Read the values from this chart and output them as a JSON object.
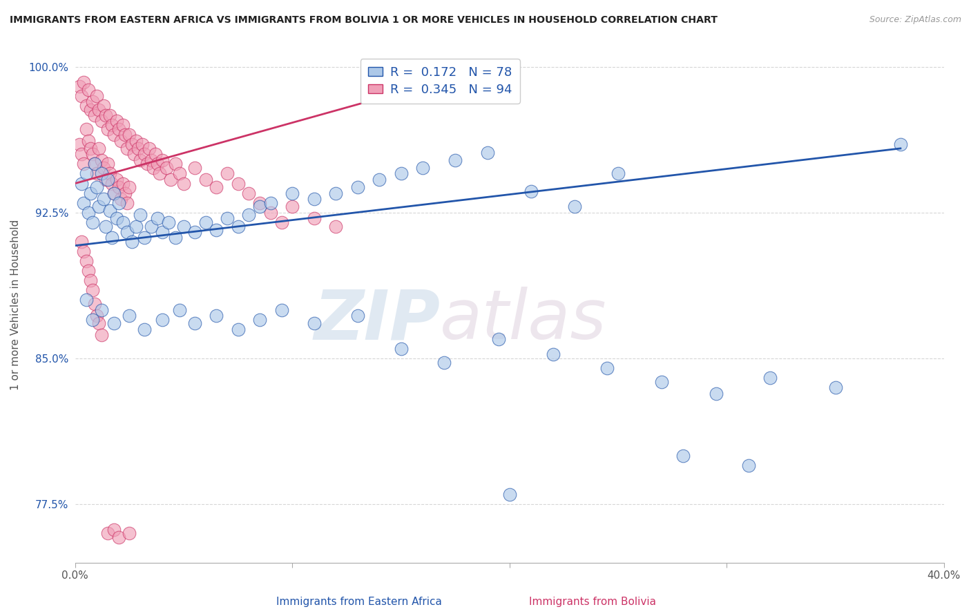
{
  "title": "IMMIGRANTS FROM EASTERN AFRICA VS IMMIGRANTS FROM BOLIVIA 1 OR MORE VEHICLES IN HOUSEHOLD CORRELATION CHART",
  "source": "Source: ZipAtlas.com",
  "xlabel_blue": "Immigrants from Eastern Africa",
  "xlabel_pink": "Immigrants from Bolivia",
  "ylabel": "1 or more Vehicles in Household",
  "xlim": [
    0.0,
    0.4
  ],
  "ylim": [
    0.745,
    1.01
  ],
  "yticks": [
    0.775,
    0.85,
    0.925,
    1.0
  ],
  "ytick_labels": [
    "77.5%",
    "85.0%",
    "92.5%",
    "100.0%"
  ],
  "xticks": [
    0.0,
    0.1,
    0.2,
    0.3,
    0.4
  ],
  "xtick_labels": [
    "0.0%",
    "",
    "",
    "",
    "40.0%"
  ],
  "R_blue": 0.172,
  "N_blue": 78,
  "R_pink": 0.345,
  "N_pink": 94,
  "color_blue": "#adc8e8",
  "color_pink": "#f0a0b8",
  "line_color_blue": "#2255aa",
  "line_color_pink": "#cc3366",
  "watermark_zip": "#b0c8e8",
  "watermark_atlas": "#d0c0d8",
  "background": "#ffffff",
  "blue_trend_x": [
    0.0,
    0.38
  ],
  "blue_trend_y": [
    0.908,
    0.958
  ],
  "pink_trend_x": [
    0.0,
    0.16
  ],
  "pink_trend_y": [
    0.94,
    0.99
  ],
  "scatter_blue_x": [
    0.003,
    0.004,
    0.005,
    0.006,
    0.007,
    0.008,
    0.009,
    0.01,
    0.011,
    0.012,
    0.013,
    0.014,
    0.015,
    0.016,
    0.017,
    0.018,
    0.019,
    0.02,
    0.022,
    0.024,
    0.026,
    0.028,
    0.03,
    0.032,
    0.035,
    0.038,
    0.04,
    0.043,
    0.046,
    0.05,
    0.055,
    0.06,
    0.065,
    0.07,
    0.075,
    0.08,
    0.085,
    0.09,
    0.1,
    0.11,
    0.12,
    0.13,
    0.14,
    0.15,
    0.16,
    0.175,
    0.19,
    0.21,
    0.23,
    0.25,
    0.005,
    0.008,
    0.012,
    0.018,
    0.025,
    0.032,
    0.04,
    0.048,
    0.055,
    0.065,
    0.075,
    0.085,
    0.095,
    0.11,
    0.13,
    0.15,
    0.17,
    0.195,
    0.22,
    0.245,
    0.27,
    0.295,
    0.32,
    0.35,
    0.28,
    0.31,
    0.38,
    0.2
  ],
  "scatter_blue_y": [
    0.94,
    0.93,
    0.945,
    0.925,
    0.935,
    0.92,
    0.95,
    0.938,
    0.928,
    0.945,
    0.932,
    0.918,
    0.942,
    0.926,
    0.912,
    0.935,
    0.922,
    0.93,
    0.92,
    0.915,
    0.91,
    0.918,
    0.924,
    0.912,
    0.918,
    0.922,
    0.915,
    0.92,
    0.912,
    0.918,
    0.915,
    0.92,
    0.916,
    0.922,
    0.918,
    0.924,
    0.928,
    0.93,
    0.935,
    0.932,
    0.935,
    0.938,
    0.942,
    0.945,
    0.948,
    0.952,
    0.956,
    0.936,
    0.928,
    0.945,
    0.88,
    0.87,
    0.875,
    0.868,
    0.872,
    0.865,
    0.87,
    0.875,
    0.868,
    0.872,
    0.865,
    0.87,
    0.875,
    0.868,
    0.872,
    0.855,
    0.848,
    0.86,
    0.852,
    0.845,
    0.838,
    0.832,
    0.84,
    0.835,
    0.8,
    0.795,
    0.96,
    0.78
  ],
  "scatter_pink_x": [
    0.002,
    0.003,
    0.004,
    0.005,
    0.006,
    0.007,
    0.008,
    0.009,
    0.01,
    0.011,
    0.012,
    0.013,
    0.014,
    0.015,
    0.016,
    0.017,
    0.018,
    0.019,
    0.02,
    0.021,
    0.022,
    0.023,
    0.024,
    0.025,
    0.026,
    0.027,
    0.028,
    0.029,
    0.03,
    0.031,
    0.032,
    0.033,
    0.034,
    0.035,
    0.036,
    0.037,
    0.038,
    0.039,
    0.04,
    0.042,
    0.044,
    0.046,
    0.048,
    0.05,
    0.055,
    0.06,
    0.065,
    0.07,
    0.075,
    0.08,
    0.002,
    0.003,
    0.004,
    0.005,
    0.006,
    0.007,
    0.008,
    0.009,
    0.01,
    0.011,
    0.012,
    0.013,
    0.014,
    0.015,
    0.016,
    0.017,
    0.018,
    0.019,
    0.02,
    0.021,
    0.022,
    0.023,
    0.024,
    0.025,
    0.085,
    0.09,
    0.095,
    0.1,
    0.11,
    0.12,
    0.003,
    0.004,
    0.005,
    0.006,
    0.007,
    0.008,
    0.009,
    0.01,
    0.011,
    0.012,
    0.015,
    0.018,
    0.02,
    0.025
  ],
  "scatter_pink_y": [
    0.99,
    0.985,
    0.992,
    0.98,
    0.988,
    0.978,
    0.982,
    0.975,
    0.985,
    0.978,
    0.972,
    0.98,
    0.975,
    0.968,
    0.975,
    0.97,
    0.965,
    0.972,
    0.968,
    0.962,
    0.97,
    0.965,
    0.958,
    0.965,
    0.96,
    0.955,
    0.962,
    0.958,
    0.952,
    0.96,
    0.955,
    0.95,
    0.958,
    0.952,
    0.948,
    0.955,
    0.95,
    0.945,
    0.952,
    0.948,
    0.942,
    0.95,
    0.945,
    0.94,
    0.948,
    0.942,
    0.938,
    0.945,
    0.94,
    0.935,
    0.96,
    0.955,
    0.95,
    0.968,
    0.962,
    0.958,
    0.955,
    0.95,
    0.945,
    0.958,
    0.952,
    0.948,
    0.942,
    0.95,
    0.945,
    0.94,
    0.935,
    0.942,
    0.938,
    0.932,
    0.94,
    0.935,
    0.93,
    0.938,
    0.93,
    0.925,
    0.92,
    0.928,
    0.922,
    0.918,
    0.91,
    0.905,
    0.9,
    0.895,
    0.89,
    0.885,
    0.878,
    0.872,
    0.868,
    0.862,
    0.76,
    0.762,
    0.758,
    0.76
  ]
}
